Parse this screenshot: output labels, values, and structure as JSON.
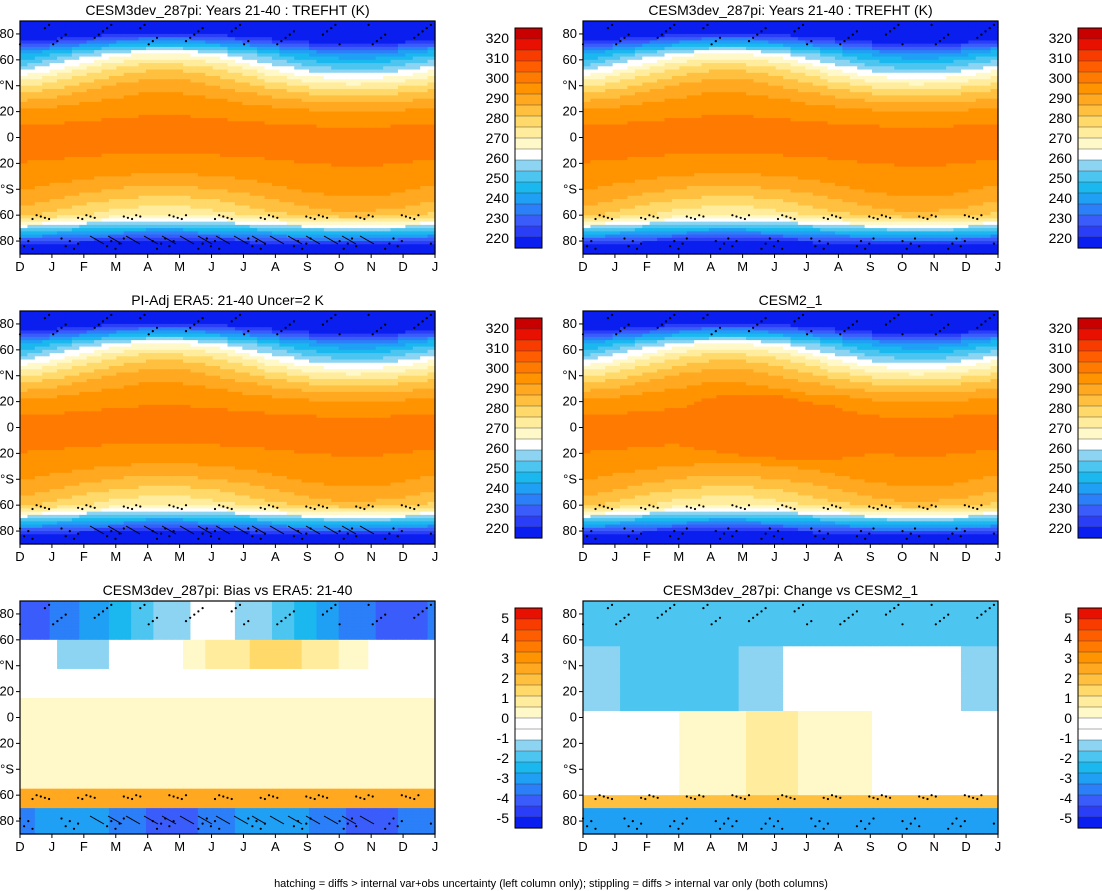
{
  "footer": "hatching = diffs > internal var+obs uncertainty (left column only); stippling = diffs > internal var only (both columns)",
  "x_ticks": [
    "D",
    "J",
    "F",
    "M",
    "A",
    "M",
    "J",
    "J",
    "A",
    "S",
    "O",
    "N",
    "D",
    "J"
  ],
  "y_ticks": [
    "80",
    "60",
    "°N",
    "20",
    "0",
    "20",
    "°S",
    "60",
    "80"
  ],
  "colorbars": {
    "abs": {
      "labels": [
        "320",
        "310",
        "300",
        "290",
        "280",
        "270",
        "260",
        "250",
        "240",
        "230",
        "220"
      ],
      "colors": [
        "#0a1ef0",
        "#2a3ef8",
        "#3a5cfa",
        "#2b7ff8",
        "#1fa0f5",
        "#1ab8ef",
        "#4cc6f0",
        "#8cd4f2",
        "#ffffff",
        "#fff8c8",
        "#ffec9c",
        "#ffd96a",
        "#ffc040",
        "#ffa820",
        "#ff9400",
        "#ff7a00",
        "#ff5e00",
        "#f83c00",
        "#e81000",
        "#c80000"
      ]
    },
    "diff": {
      "labels": [
        "5",
        "4",
        "3",
        "2",
        "1",
        "0",
        "-1",
        "-2",
        "-3",
        "-4",
        "-5"
      ],
      "colors": [
        "#0a1ef0",
        "#2a3ef8",
        "#3a5cfa",
        "#2b7ff8",
        "#1fa0f5",
        "#1ab8ef",
        "#4cc6f0",
        "#8cd4f2",
        "#ffffff",
        "#ffffff",
        "#fff8c8",
        "#ffec9c",
        "#ffd96a",
        "#ffc040",
        "#ffa820",
        "#ff9400",
        "#ff7a00",
        "#ff5e00",
        "#f83c00",
        "#e81000"
      ]
    }
  },
  "chart_data": [
    {
      "type": "heatmap",
      "title": "CESM3dev_287pi: Years 21-40 : TREFHT (K)",
      "colorbar": "abs",
      "field": "abs",
      "hatching": true,
      "xlabel": "",
      "ylabel": "",
      "clim": [
        215,
        325
      ]
    },
    {
      "type": "heatmap",
      "title": "CESM3dev_287pi: Years 21-40 : TREFHT (K)",
      "colorbar": "abs",
      "field": "abs",
      "hatching": false,
      "xlabel": "",
      "ylabel": "",
      "clim": [
        215,
        325
      ]
    },
    {
      "type": "heatmap",
      "title": "PI-Adj ERA5: 21-40 Uncer=2 K",
      "colorbar": "abs",
      "field": "abs",
      "hatching": true,
      "xlabel": "",
      "ylabel": "",
      "clim": [
        215,
        325
      ]
    },
    {
      "type": "heatmap",
      "title": "CESM2_1",
      "colorbar": "abs",
      "field": "abs_warm",
      "hatching": false,
      "xlabel": "",
      "ylabel": "",
      "clim": [
        215,
        325
      ]
    },
    {
      "type": "heatmap",
      "title": "CESM3dev_287pi: Bias vs ERA5: 21-40",
      "colorbar": "diff",
      "field": "bias",
      "hatching": true,
      "xlabel": "",
      "ylabel": "",
      "clim": [
        -5.5,
        5.5
      ]
    },
    {
      "type": "heatmap",
      "title": "CESM3dev_287pi: Change vs CESM2_1",
      "colorbar": "diff",
      "field": "change",
      "hatching": false,
      "xlabel": "",
      "ylabel": "",
      "clim": [
        -5.5,
        5.5
      ]
    }
  ]
}
